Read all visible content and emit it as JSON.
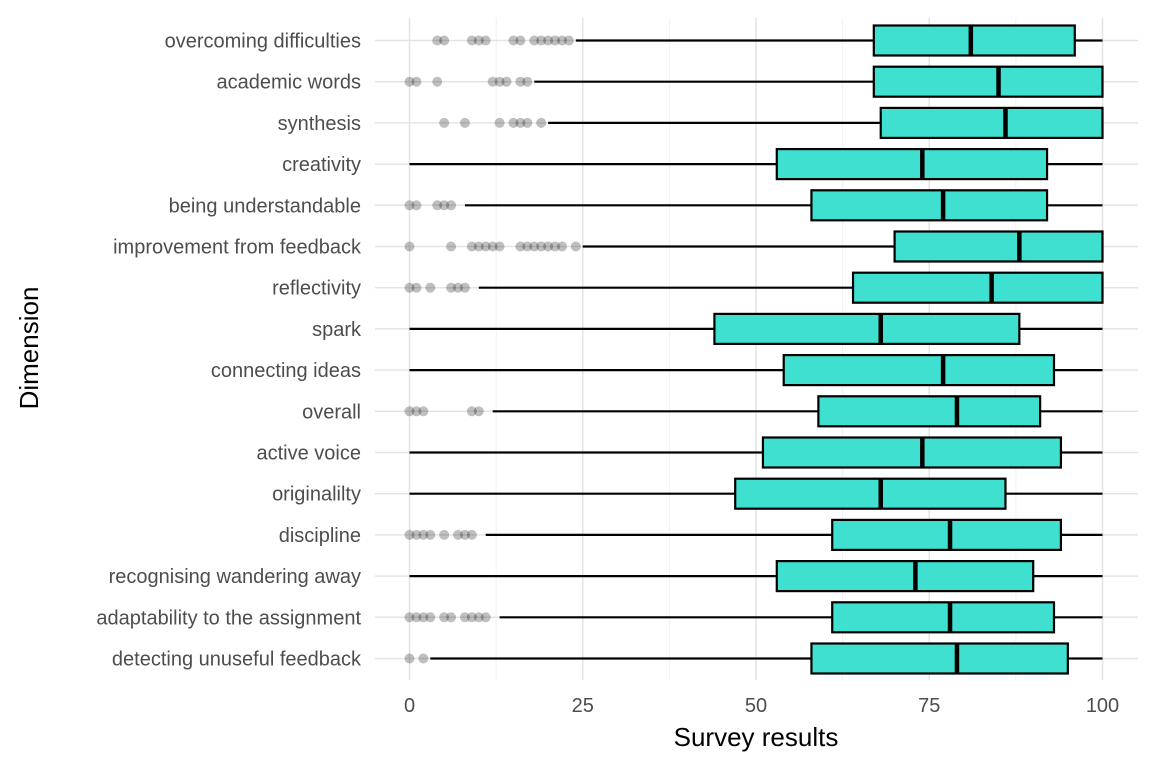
{
  "chart_data": {
    "type": "boxplot",
    "orientation": "horizontal",
    "xlabel": "Survey results",
    "ylabel": "Dimension",
    "xlim": [
      -3,
      104
    ],
    "xticks": [
      0,
      25,
      50,
      75,
      100
    ],
    "grid": true,
    "box_color": "#40E0D0",
    "outlier_color": "#000000",
    "categories": [
      {
        "name": "overcoming difficulties",
        "min": 24,
        "q1": 67,
        "median": 81,
        "q3": 96,
        "max": 100,
        "outliers": [
          4,
          5,
          9,
          10,
          11,
          15,
          16,
          18,
          19,
          20,
          21,
          22,
          23
        ]
      },
      {
        "name": "academic words",
        "min": 18,
        "q1": 67,
        "median": 85,
        "q3": 100,
        "max": 100,
        "outliers": [
          0,
          1,
          4,
          12,
          13,
          14,
          16,
          17
        ]
      },
      {
        "name": "synthesis",
        "min": 20,
        "q1": 68,
        "median": 86,
        "q3": 100,
        "max": 100,
        "outliers": [
          5,
          8,
          13,
          15,
          16,
          17,
          19
        ]
      },
      {
        "name": "creativity",
        "min": 0,
        "q1": 53,
        "median": 74,
        "q3": 92,
        "max": 100,
        "outliers": []
      },
      {
        "name": "being understandable",
        "min": 8,
        "q1": 58,
        "median": 77,
        "q3": 92,
        "max": 100,
        "outliers": [
          0,
          1,
          4,
          5,
          6
        ]
      },
      {
        "name": "improvement from feedback",
        "min": 25,
        "q1": 70,
        "median": 88,
        "q3": 100,
        "max": 100,
        "outliers": [
          0,
          6,
          9,
          10,
          11,
          12,
          13,
          16,
          17,
          18,
          19,
          20,
          21,
          22,
          24
        ]
      },
      {
        "name": "reflectivity",
        "min": 10,
        "q1": 64,
        "median": 84,
        "q3": 100,
        "max": 100,
        "outliers": [
          0,
          1,
          3,
          6,
          7,
          8
        ]
      },
      {
        "name": "spark",
        "min": 0,
        "q1": 44,
        "median": 68,
        "q3": 88,
        "max": 100,
        "outliers": []
      },
      {
        "name": "connecting ideas",
        "min": 0,
        "q1": 54,
        "median": 77,
        "q3": 93,
        "max": 100,
        "outliers": []
      },
      {
        "name": "overall",
        "min": 12,
        "q1": 59,
        "median": 79,
        "q3": 91,
        "max": 100,
        "outliers": [
          0,
          1,
          2,
          9,
          10
        ]
      },
      {
        "name": "active voice",
        "min": 0,
        "q1": 51,
        "median": 74,
        "q3": 94,
        "max": 100,
        "outliers": []
      },
      {
        "name": "originalilty",
        "min": 0,
        "q1": 47,
        "median": 68,
        "q3": 86,
        "max": 100,
        "outliers": []
      },
      {
        "name": "discipline",
        "min": 11,
        "q1": 61,
        "median": 78,
        "q3": 94,
        "max": 100,
        "outliers": [
          0,
          1,
          2,
          3,
          5,
          7,
          8,
          9
        ]
      },
      {
        "name": "recognising wandering away",
        "min": 0,
        "q1": 53,
        "median": 73,
        "q3": 90,
        "max": 100,
        "outliers": []
      },
      {
        "name": "adaptability to the assignment",
        "min": 13,
        "q1": 61,
        "median": 78,
        "q3": 93,
        "max": 100,
        "outliers": [
          0,
          1,
          2,
          3,
          5,
          6,
          8,
          9,
          10,
          11
        ]
      },
      {
        "name": "detecting unuseful feedback",
        "min": 3,
        "q1": 58,
        "median": 79,
        "q3": 95,
        "max": 100,
        "outliers": [
          0,
          2
        ]
      }
    ]
  }
}
